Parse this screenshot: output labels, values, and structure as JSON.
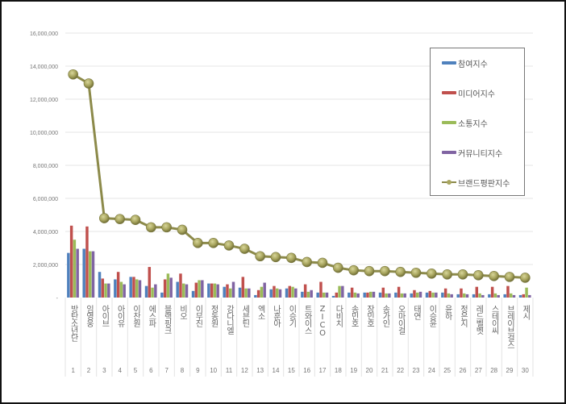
{
  "chart_data": {
    "type": "bar+line",
    "title": "",
    "xlabel": "",
    "ylabel": "",
    "ylim": [
      0,
      16000000
    ],
    "yticks": [
      "-",
      "2,000,000",
      "4,000,000",
      "6,000,000",
      "8,000,000",
      "10,000,000",
      "12,000,000",
      "14,000,000",
      "16,000,000"
    ],
    "grid": true,
    "legend_position": "right-top-inside",
    "categories": [
      "방탄소년단",
      "임영웅",
      "아이브",
      "아이유",
      "이찬원",
      "에스파",
      "블랙핑크",
      "비오",
      "이무진",
      "정동원",
      "강다니엘",
      "세븐틴",
      "엑소",
      "나훈아",
      "이승기",
      "트와이스",
      "ZICO",
      "다비치",
      "송민호",
      "장민호",
      "송가인",
      "오마이걸",
      "태연",
      "이승윤",
      "윤하",
      "정은지",
      "레드벨벳",
      "스테이씨",
      "브레이브걸스",
      "제시"
    ],
    "ranks": [
      "1",
      "2",
      "3",
      "4",
      "5",
      "6",
      "7",
      "8",
      "9",
      "10",
      "11",
      "12",
      "13",
      "14",
      "15",
      "16",
      "17",
      "18",
      "19",
      "20",
      "21",
      "22",
      "23",
      "24",
      "25",
      "26",
      "27",
      "28",
      "29",
      "30"
    ],
    "series": [
      {
        "name": "참여지수",
        "type": "bar",
        "color": "#4f81bd",
        "values": [
          2700000,
          2950000,
          1550000,
          1100000,
          1250000,
          700000,
          300000,
          950000,
          400000,
          850000,
          650000,
          600000,
          150000,
          500000,
          550000,
          350000,
          300000,
          100000,
          300000,
          300000,
          300000,
          300000,
          250000,
          300000,
          300000,
          200000,
          200000,
          200000,
          200000,
          150000
        ]
      },
      {
        "name": "미디어지수",
        "type": "bar",
        "color": "#c0504d",
        "values": [
          4350000,
          4300000,
          1150000,
          1550000,
          1250000,
          1850000,
          1100000,
          1450000,
          900000,
          850000,
          800000,
          1250000,
          450000,
          700000,
          700000,
          800000,
          950000,
          300000,
          600000,
          300000,
          600000,
          650000,
          450000,
          400000,
          550000,
          550000,
          650000,
          650000,
          700000,
          200000
        ]
      },
      {
        "name": "소통지수",
        "type": "bar",
        "color": "#9bbb59",
        "values": [
          3500000,
          2800000,
          850000,
          950000,
          1100000,
          600000,
          1450000,
          850000,
          1050000,
          850000,
          550000,
          550000,
          650000,
          550000,
          650000,
          350000,
          300000,
          700000,
          300000,
          350000,
          250000,
          250000,
          300000,
          300000,
          250000,
          250000,
          250000,
          250000,
          250000,
          600000
        ]
      },
      {
        "name": "커뮤니티지수",
        "type": "bar",
        "color": "#8064a2",
        "values": [
          2950000,
          2800000,
          850000,
          800000,
          1050000,
          800000,
          1200000,
          800000,
          1050000,
          800000,
          950000,
          550000,
          900000,
          500000,
          550000,
          450000,
          300000,
          700000,
          250000,
          350000,
          250000,
          250000,
          350000,
          300000,
          200000,
          200000,
          150000,
          150000,
          150000,
          150000
        ]
      },
      {
        "name": "브랜드평판지수",
        "type": "line",
        "color": "#8c8a4a",
        "values": [
          13500000,
          12950000,
          4800000,
          4750000,
          4700000,
          4250000,
          4250000,
          4100000,
          3300000,
          3300000,
          3150000,
          2950000,
          2500000,
          2450000,
          2400000,
          2150000,
          2100000,
          1800000,
          1650000,
          1600000,
          1600000,
          1550000,
          1500000,
          1450000,
          1400000,
          1400000,
          1350000,
          1300000,
          1250000,
          1200000
        ]
      }
    ]
  },
  "legend": {
    "items": [
      {
        "label": "참여지수",
        "color": "#4f81bd"
      },
      {
        "label": "미디어지수",
        "color": "#c0504d"
      },
      {
        "label": "소통지수",
        "color": "#9bbb59"
      },
      {
        "label": "커뮤니티지수",
        "color": "#8064a2"
      },
      {
        "label": "브랜드평판지수",
        "color": "#8c8a4a"
      }
    ]
  }
}
